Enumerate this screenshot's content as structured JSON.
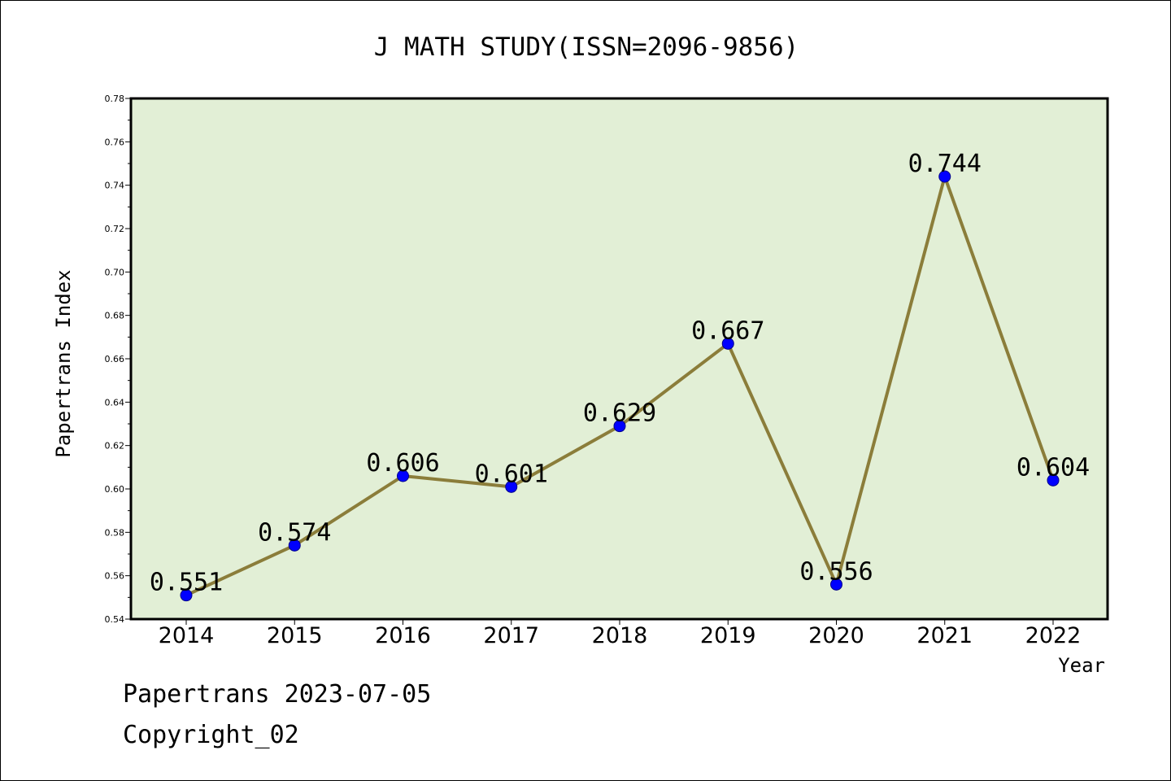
{
  "chart_data": {
    "type": "line",
    "title": "J MATH STUDY(ISSN=2096-9856)",
    "xlabel": "Year",
    "ylabel": "Papertrans Index",
    "categories": [
      "2014",
      "2015",
      "2016",
      "2017",
      "2018",
      "2019",
      "2020",
      "2021",
      "2022"
    ],
    "series": [
      {
        "values": [
          0.551,
          0.574,
          0.606,
          0.601,
          0.629,
          0.667,
          0.556,
          0.744,
          0.604
        ],
        "labels": [
          "0.551",
          "0.574",
          "0.606",
          "0.601",
          "0.629",
          "0.667",
          "0.556",
          "0.744",
          "0.604"
        ],
        "line_color": "#8b7d3a",
        "marker_color": "#0000ff"
      }
    ],
    "ylim": [
      0.54,
      0.78
    ],
    "yticks": [
      "0.54",
      "0.56",
      "0.58",
      "0.60",
      "0.62",
      "0.64",
      "0.66",
      "0.68",
      "0.70",
      "0.72",
      "0.74",
      "0.76",
      "0.78"
    ],
    "plot_background": "#e2efd6",
    "grid": false,
    "legend": "none"
  },
  "footer": {
    "date_text": "Papertrans 2023-07-05",
    "copyright_text": "Copyright_02"
  }
}
